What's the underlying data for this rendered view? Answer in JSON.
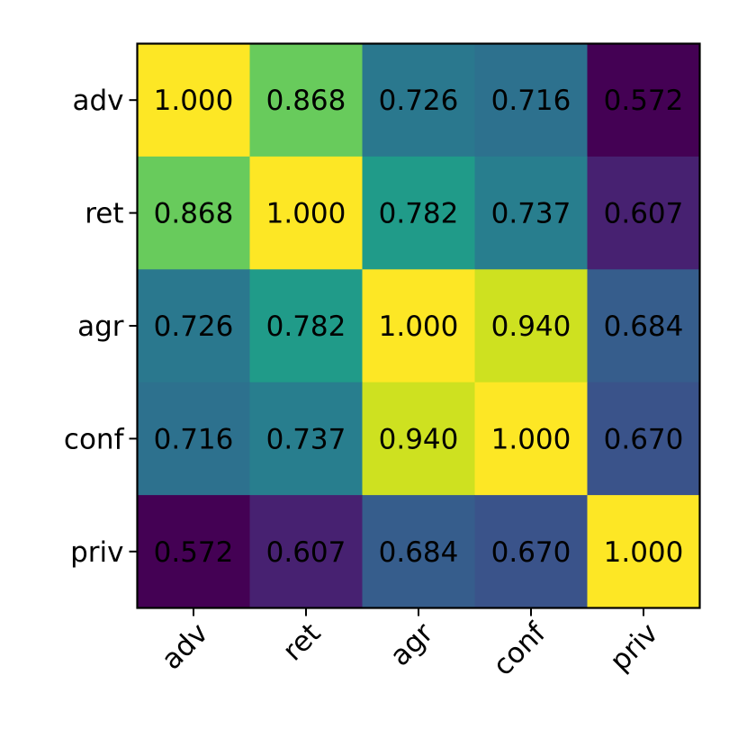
{
  "chart_data": {
    "type": "heatmap",
    "title": "",
    "xlabel": "",
    "ylabel": "",
    "x_categories": [
      "adv",
      "ret",
      "agr",
      "conf",
      "priv"
    ],
    "y_categories": [
      "adv",
      "ret",
      "agr",
      "conf",
      "priv"
    ],
    "values": [
      [
        1.0,
        0.868,
        0.726,
        0.716,
        0.572
      ],
      [
        0.868,
        1.0,
        0.782,
        0.737,
        0.607
      ],
      [
        0.726,
        0.782,
        1.0,
        0.94,
        0.684
      ],
      [
        0.716,
        0.737,
        0.94,
        1.0,
        0.67
      ],
      [
        0.572,
        0.607,
        0.684,
        0.67,
        1.0
      ]
    ],
    "value_labels": [
      [
        "1.000",
        "0.868",
        "0.726",
        "0.716",
        "0.572"
      ],
      [
        "0.868",
        "1.000",
        "0.782",
        "0.737",
        "0.607"
      ],
      [
        "0.726",
        "0.782",
        "1.000",
        "0.940",
        "0.684"
      ],
      [
        "0.716",
        "0.737",
        "0.940",
        "1.000",
        "0.670"
      ],
      [
        "0.572",
        "0.607",
        "0.684",
        "0.670",
        "1.000"
      ]
    ],
    "colormap": "viridis",
    "color_range": [
      0.572,
      1.0
    ],
    "colorbar": false,
    "grid": false,
    "x_tick_rotation_deg": 45
  }
}
